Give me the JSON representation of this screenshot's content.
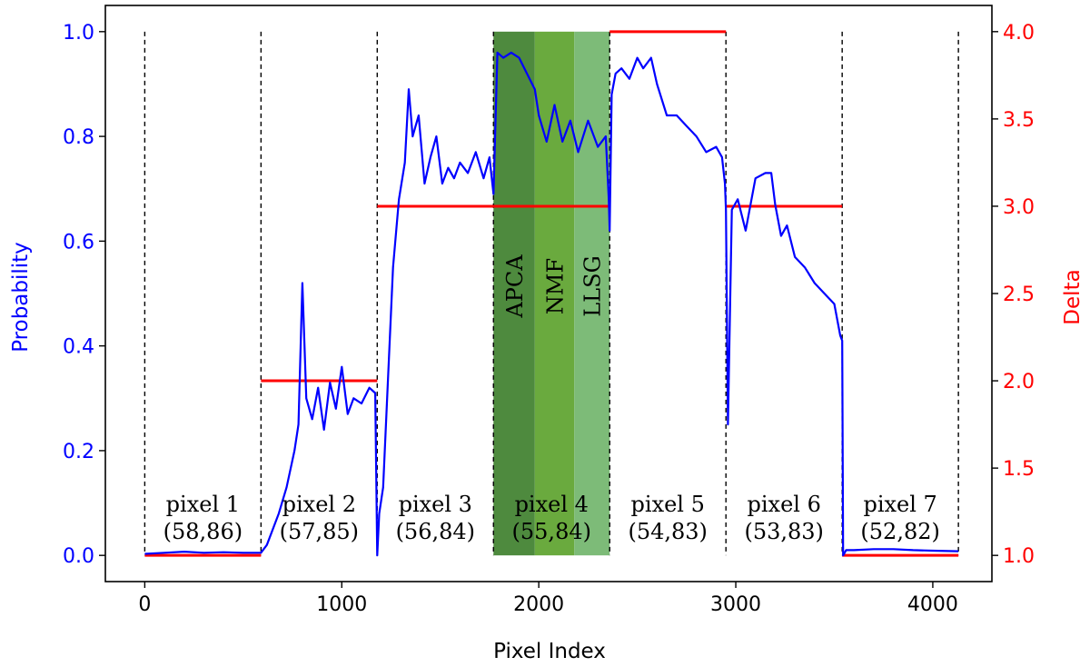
{
  "chart_data": {
    "type": "line",
    "xlabel": "Pixel Index",
    "ylabel_left": "Probability",
    "ylabel_right": "Delta",
    "xlim": [
      -200,
      4300
    ],
    "ylim_left": [
      -0.05,
      1.05
    ],
    "ylim_right": [
      0.85,
      4.15
    ],
    "xticks": [
      0,
      1000,
      2000,
      3000,
      4000
    ],
    "yticks_left": [
      "0.0",
      "0.2",
      "0.4",
      "0.6",
      "0.8",
      "1.0"
    ],
    "yticks_right": [
      "1.0",
      "1.5",
      "2.0",
      "2.5",
      "3.0",
      "3.5",
      "4.0"
    ],
    "colors": {
      "probability": "#0000ff",
      "delta": "#ff0000",
      "apca": "#4e8a3e",
      "nmf": "#6aaa3e",
      "llsg": "#7dbb78"
    },
    "grid": false,
    "segment_boundaries": [
      0,
      590,
      1180,
      1770,
      2360,
      2950,
      3540,
      4130
    ],
    "segments": [
      {
        "label": "pixel 1",
        "coord": "(58,86)"
      },
      {
        "label": "pixel 2",
        "coord": "(57,85)"
      },
      {
        "label": "pixel 3",
        "coord": "(56,84)"
      },
      {
        "label": "pixel 4",
        "coord": "(55,84)"
      },
      {
        "label": "pixel 5",
        "coord": "(54,83)"
      },
      {
        "label": "pixel 6",
        "coord": "(53,83)"
      },
      {
        "label": "pixel 7",
        "coord": "(52,82)"
      }
    ],
    "method_bands": [
      {
        "name": "APCA",
        "x0": 1770,
        "x1": 1980
      },
      {
        "name": "NMF",
        "x0": 1980,
        "x1": 2180
      },
      {
        "name": "LLSG",
        "x0": 2180,
        "x1": 2360
      }
    ],
    "delta_series": [
      {
        "x0": 0,
        "x1": 590,
        "value": 1.0
      },
      {
        "x0": 590,
        "x1": 1180,
        "value": 2.0
      },
      {
        "x0": 1180,
        "x1": 2360,
        "value": 3.0
      },
      {
        "x0": 2360,
        "x1": 2950,
        "value": 4.0
      },
      {
        "x0": 2950,
        "x1": 3540,
        "value": 3.0
      },
      {
        "x0": 3540,
        "x1": 4130,
        "value": 1.0
      }
    ],
    "probability_series": {
      "x": [
        0,
        100,
        200,
        300,
        400,
        500,
        590,
        620,
        680,
        720,
        760,
        780,
        800,
        820,
        850,
        880,
        910,
        940,
        970,
        1000,
        1030,
        1060,
        1100,
        1140,
        1170,
        1180,
        1190,
        1210,
        1230,
        1260,
        1290,
        1320,
        1340,
        1360,
        1390,
        1420,
        1450,
        1480,
        1510,
        1540,
        1570,
        1600,
        1640,
        1680,
        1720,
        1750,
        1770,
        1790,
        1820,
        1860,
        1900,
        1940,
        1980,
        2000,
        2040,
        2080,
        2120,
        2160,
        2200,
        2250,
        2300,
        2340,
        2355,
        2360,
        2370,
        2390,
        2420,
        2460,
        2500,
        2530,
        2570,
        2600,
        2650,
        2700,
        2750,
        2800,
        2850,
        2900,
        2930,
        2945,
        2950,
        2960,
        2980,
        3010,
        3050,
        3100,
        3150,
        3180,
        3200,
        3230,
        3260,
        3300,
        3350,
        3400,
        3450,
        3500,
        3530,
        3540,
        3545,
        3560,
        3600,
        3700,
        3800,
        3900,
        4000,
        4130
      ],
      "y": [
        0.003,
        0.005,
        0.007,
        0.005,
        0.006,
        0.005,
        0.005,
        0.02,
        0.08,
        0.13,
        0.2,
        0.25,
        0.52,
        0.3,
        0.26,
        0.32,
        0.24,
        0.33,
        0.28,
        0.36,
        0.27,
        0.3,
        0.29,
        0.32,
        0.31,
        0.0,
        0.08,
        0.13,
        0.3,
        0.55,
        0.68,
        0.75,
        0.89,
        0.8,
        0.84,
        0.71,
        0.76,
        0.8,
        0.71,
        0.74,
        0.72,
        0.75,
        0.73,
        0.77,
        0.72,
        0.76,
        0.69,
        0.96,
        0.95,
        0.96,
        0.95,
        0.92,
        0.89,
        0.84,
        0.79,
        0.86,
        0.79,
        0.83,
        0.77,
        0.83,
        0.78,
        0.8,
        0.68,
        0.62,
        0.88,
        0.92,
        0.93,
        0.91,
        0.95,
        0.93,
        0.95,
        0.9,
        0.84,
        0.84,
        0.82,
        0.8,
        0.77,
        0.78,
        0.76,
        0.71,
        0.66,
        0.25,
        0.66,
        0.68,
        0.62,
        0.72,
        0.73,
        0.73,
        0.67,
        0.61,
        0.63,
        0.57,
        0.55,
        0.52,
        0.5,
        0.48,
        0.42,
        0.41,
        0.0,
        0.01,
        0.01,
        0.012,
        0.012,
        0.01,
        0.009,
        0.008
      ]
    }
  }
}
